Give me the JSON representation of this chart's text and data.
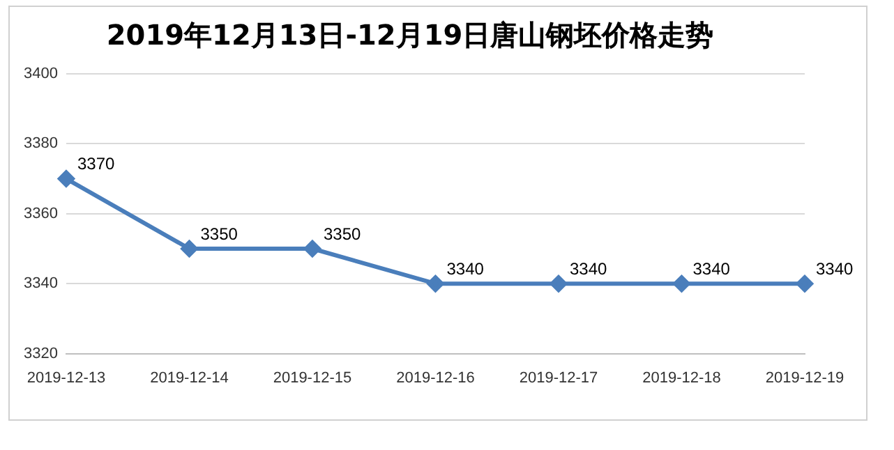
{
  "chart_data": {
    "type": "line",
    "title": "2019年12月13日-12月19日唐山钢坯价格走势",
    "categories": [
      "2019-12-13",
      "2019-12-14",
      "2019-12-15",
      "2019-12-16",
      "2019-12-17",
      "2019-12-18",
      "2019-12-19"
    ],
    "series": [
      {
        "color": "#4a7ebb",
        "values": [
          3370,
          3350,
          3350,
          3340,
          3340,
          3340,
          3340
        ]
      }
    ],
    "ylim": [
      3320,
      3400
    ],
    "yticks": [
      3320,
      3340,
      3360,
      3380,
      3400
    ],
    "grid": "y",
    "legend": false,
    "marker": "diamond",
    "line_style": "solid",
    "data_labels": true
  }
}
